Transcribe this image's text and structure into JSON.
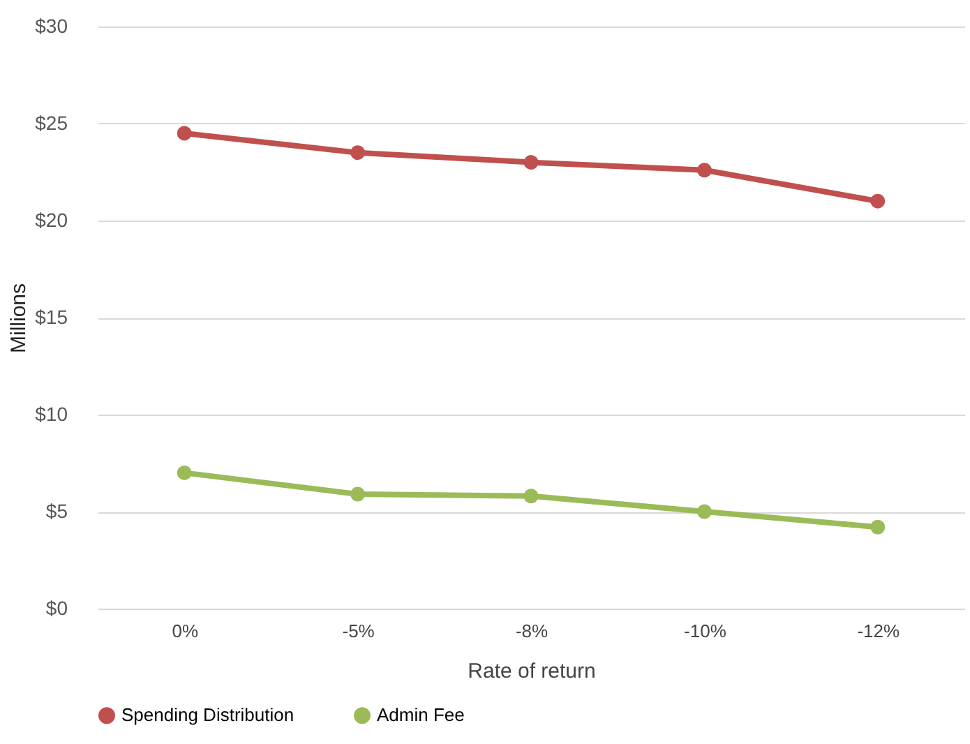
{
  "chart_data": {
    "type": "line",
    "xlabel": "Rate of return",
    "ylabel": "Millions",
    "categories": [
      "0%",
      "-5%",
      "-8%",
      "-10%",
      "-12%"
    ],
    "series": [
      {
        "name": "Spending Distribution",
        "color": "#c0504d",
        "values": [
          24.5,
          23.5,
          23.0,
          22.6,
          21.0
        ]
      },
      {
        "name": "Admin Fee",
        "color": "#9bbb59",
        "values": [
          7.0,
          5.9,
          5.8,
          5.0,
          4.2
        ]
      }
    ],
    "ylim": [
      0,
      30
    ],
    "yticks": [
      {
        "value": 0,
        "label": "$0"
      },
      {
        "value": 5,
        "label": "$5"
      },
      {
        "value": 10,
        "label": "$10"
      },
      {
        "value": 15,
        "label": "$15"
      },
      {
        "value": 20,
        "label": "$20"
      },
      {
        "value": 25,
        "label": "$25"
      },
      {
        "value": 30,
        "label": "$30"
      }
    ],
    "grid": "y",
    "legend": "bottom",
    "marker": "circle",
    "line_style": "solid"
  }
}
